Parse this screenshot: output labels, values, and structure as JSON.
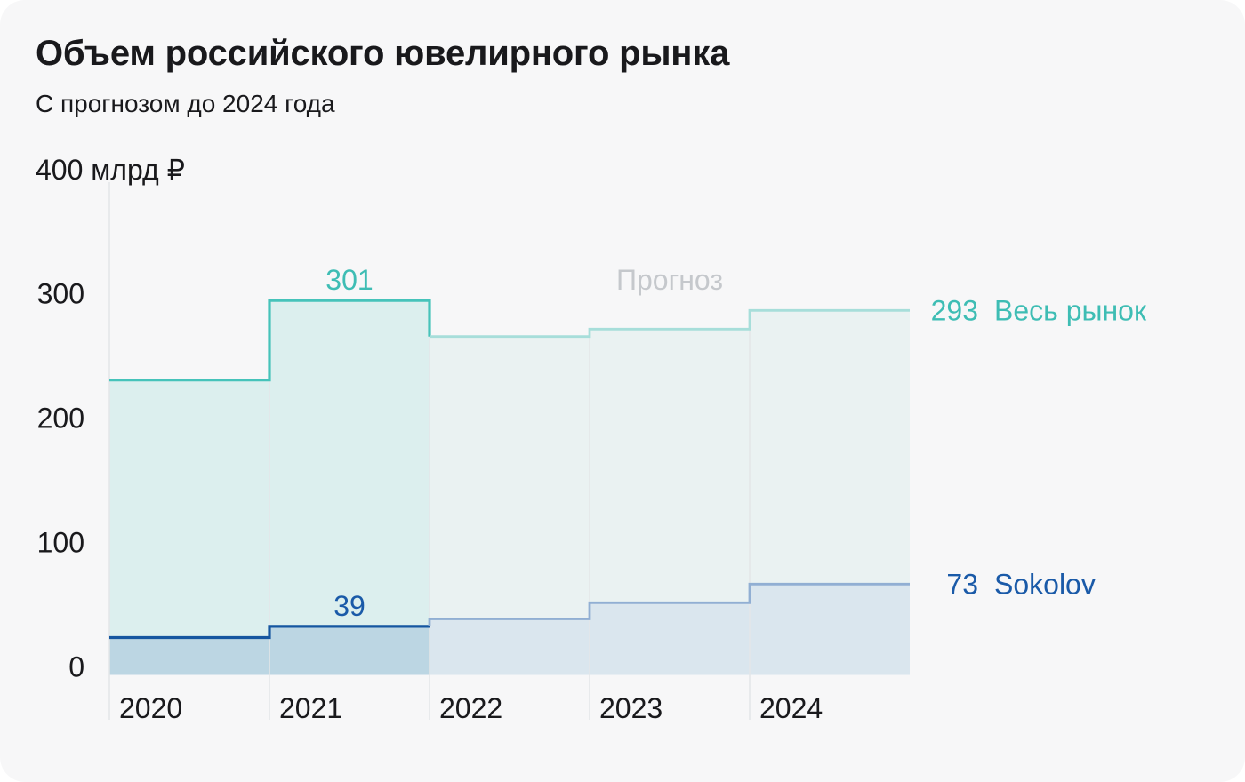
{
  "page": {
    "background": "#ffffff",
    "card_background": "#f7f7f8"
  },
  "chart_data": {
    "type": "area",
    "step": "step-after",
    "title": "Объем российского ювелирного рынка",
    "subtitle": "С прогнозом до 2024 года",
    "categories": [
      "2020",
      "2021",
      "2022",
      "2023",
      "2024"
    ],
    "forecast_from": "2022",
    "forecast_label": "Прогноз",
    "grid": "vertical",
    "legend_position": "right",
    "y_axis": {
      "unit": "млрд ₽",
      "max_label": "400 млрд ₽",
      "ticks": [
        300,
        200,
        100,
        0
      ],
      "ylim": [
        0,
        400
      ]
    },
    "colors": {
      "grid": "#e3e6e8",
      "forecast_label": "#c5c8cc",
      "tick_text": "#19191c"
    },
    "series": [
      {
        "key": "market",
        "name": "Весь рынок",
        "values": [
          237,
          301,
          272,
          278,
          293
        ],
        "actual_categories": [
          "2020",
          "2021"
        ],
        "forecast_categories": [
          "2022",
          "2023",
          "2024"
        ],
        "annotations": [
          {
            "category": "2021",
            "text": "301"
          }
        ],
        "end_label": {
          "value": "293",
          "name": "Весь рынок"
        },
        "transition_in": "actual",
        "colors": {
          "stroke_actual": "#46c3ba",
          "stroke_forecast": "#a7deda",
          "fill_actual": "#dcefee",
          "fill_forecast": "#eaf2f2",
          "label": "#3ebdb4"
        }
      },
      {
        "key": "sokolov",
        "name": "Sokolov",
        "values": [
          30,
          39,
          45,
          58,
          73
        ],
        "actual_categories": [
          "2020",
          "2021"
        ],
        "forecast_categories": [
          "2022",
          "2023",
          "2024"
        ],
        "annotations": [
          {
            "category": "2021",
            "text": "39"
          }
        ],
        "end_label": {
          "value": "73",
          "name": "Sokolov"
        },
        "transition_in": "forecast",
        "colors": {
          "stroke_actual": "#1556a0",
          "stroke_forecast": "#91afd3",
          "fill_actual": "#bcd6e3",
          "fill_forecast": "#dae6ee",
          "label": "#1a5aa8"
        }
      }
    ]
  }
}
